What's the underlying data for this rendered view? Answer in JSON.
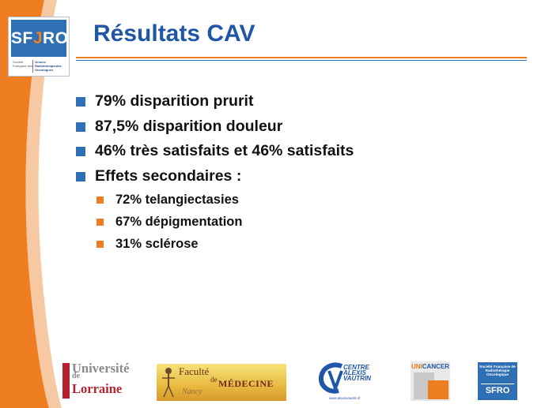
{
  "header": {
    "title": "Résultats CAV"
  },
  "logos": {
    "sfjro": {
      "name_pre": "SF",
      "name_j": "J",
      "name_post": "RO",
      "subtitle_left": "Société Française des",
      "subtitle_right": "Jeunes Radiothérapeutes Oncologues"
    },
    "universite_lorraine": {
      "line1": "Université",
      "line2": "de",
      "line3": "Lorraine"
    },
    "faculte_medecine": {
      "faculte": "Faculté",
      "de": "de",
      "medecine": "MÉDECINE",
      "nancy": "Nancy"
    },
    "cav": {
      "line1": "CENTRE",
      "line2": "ALEXIS",
      "line3": "VAUTRIN",
      "url": "www.alexisvautrin.fr"
    },
    "unicancer": {
      "uni": "UNI",
      "cancer": "CANCER"
    },
    "sfro": {
      "small_text": "Société Française de Radiothérapie Oncologique",
      "acronym": "SFRO"
    }
  },
  "bullets": [
    {
      "level": 1,
      "text": "79% disparition prurit"
    },
    {
      "level": 1,
      "text": "87,5% disparition douleur"
    },
    {
      "level": 1,
      "text": "46% très satisfaits et 46% satisfaits"
    },
    {
      "level": 1,
      "text": "Effets secondaires :"
    },
    {
      "level": 2,
      "text": "72% telangiectasies"
    },
    {
      "level": 2,
      "text": "67% dépigmentation"
    },
    {
      "level": 2,
      "text": "31% sclérose"
    }
  ],
  "colors": {
    "accent_orange": "#ef7d22",
    "title_blue": "#1f56a8",
    "bullet_blue": "#2f6fb4"
  }
}
